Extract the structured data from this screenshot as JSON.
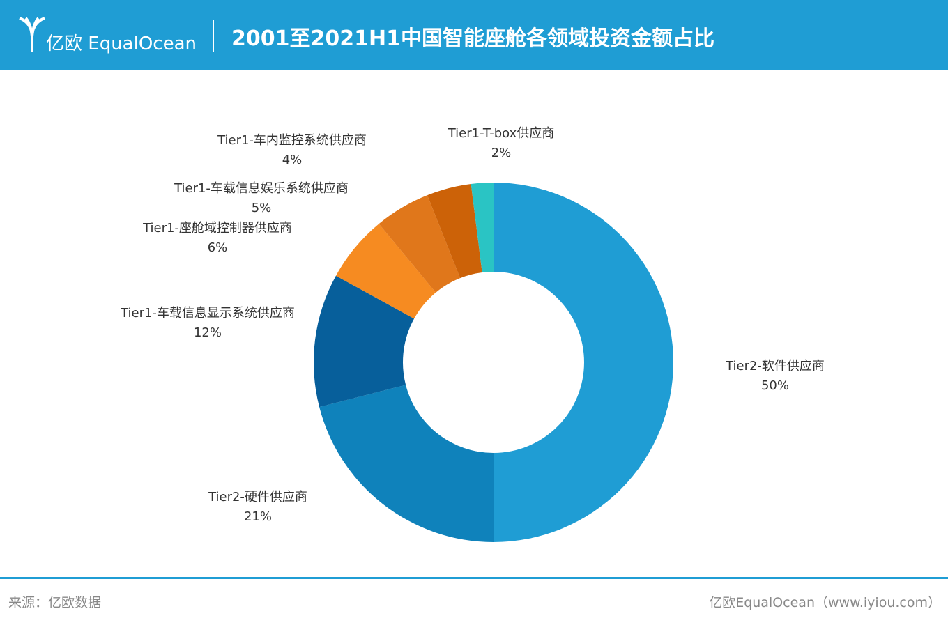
{
  "header": {
    "logo": "亿欧 EqualOcean"
  },
  "chart_data": {
    "type": "pie",
    "title": "2001至2021H1中国智能座舱各领域投资金额占比",
    "categories": [
      "Tier2-软件供应商",
      "Tier2-硬件供应商",
      "Tier1-车载信息显示系统供应商",
      "Tier1-座舱域控制器供应商",
      "Tier1-车载信息娱乐系统供应商",
      "Tier1-车内监控系统供应商",
      "Tier1-T-box供应商"
    ],
    "values": [
      50,
      21,
      12,
      6,
      5,
      4,
      2
    ],
    "value_labels": [
      "50%",
      "21%",
      "12%",
      "6%",
      "5%",
      "4%",
      "2%"
    ],
    "colors": [
      "#1f9dd4",
      "#0f82bb",
      "#075f9b",
      "#f68b21",
      "#e0771b",
      "#cc6208",
      "#2ac4c4"
    ]
  },
  "footer": {
    "source": "来源：亿欧数据",
    "credit": "亿欧EqualOcean（www.iyiou.com）"
  }
}
